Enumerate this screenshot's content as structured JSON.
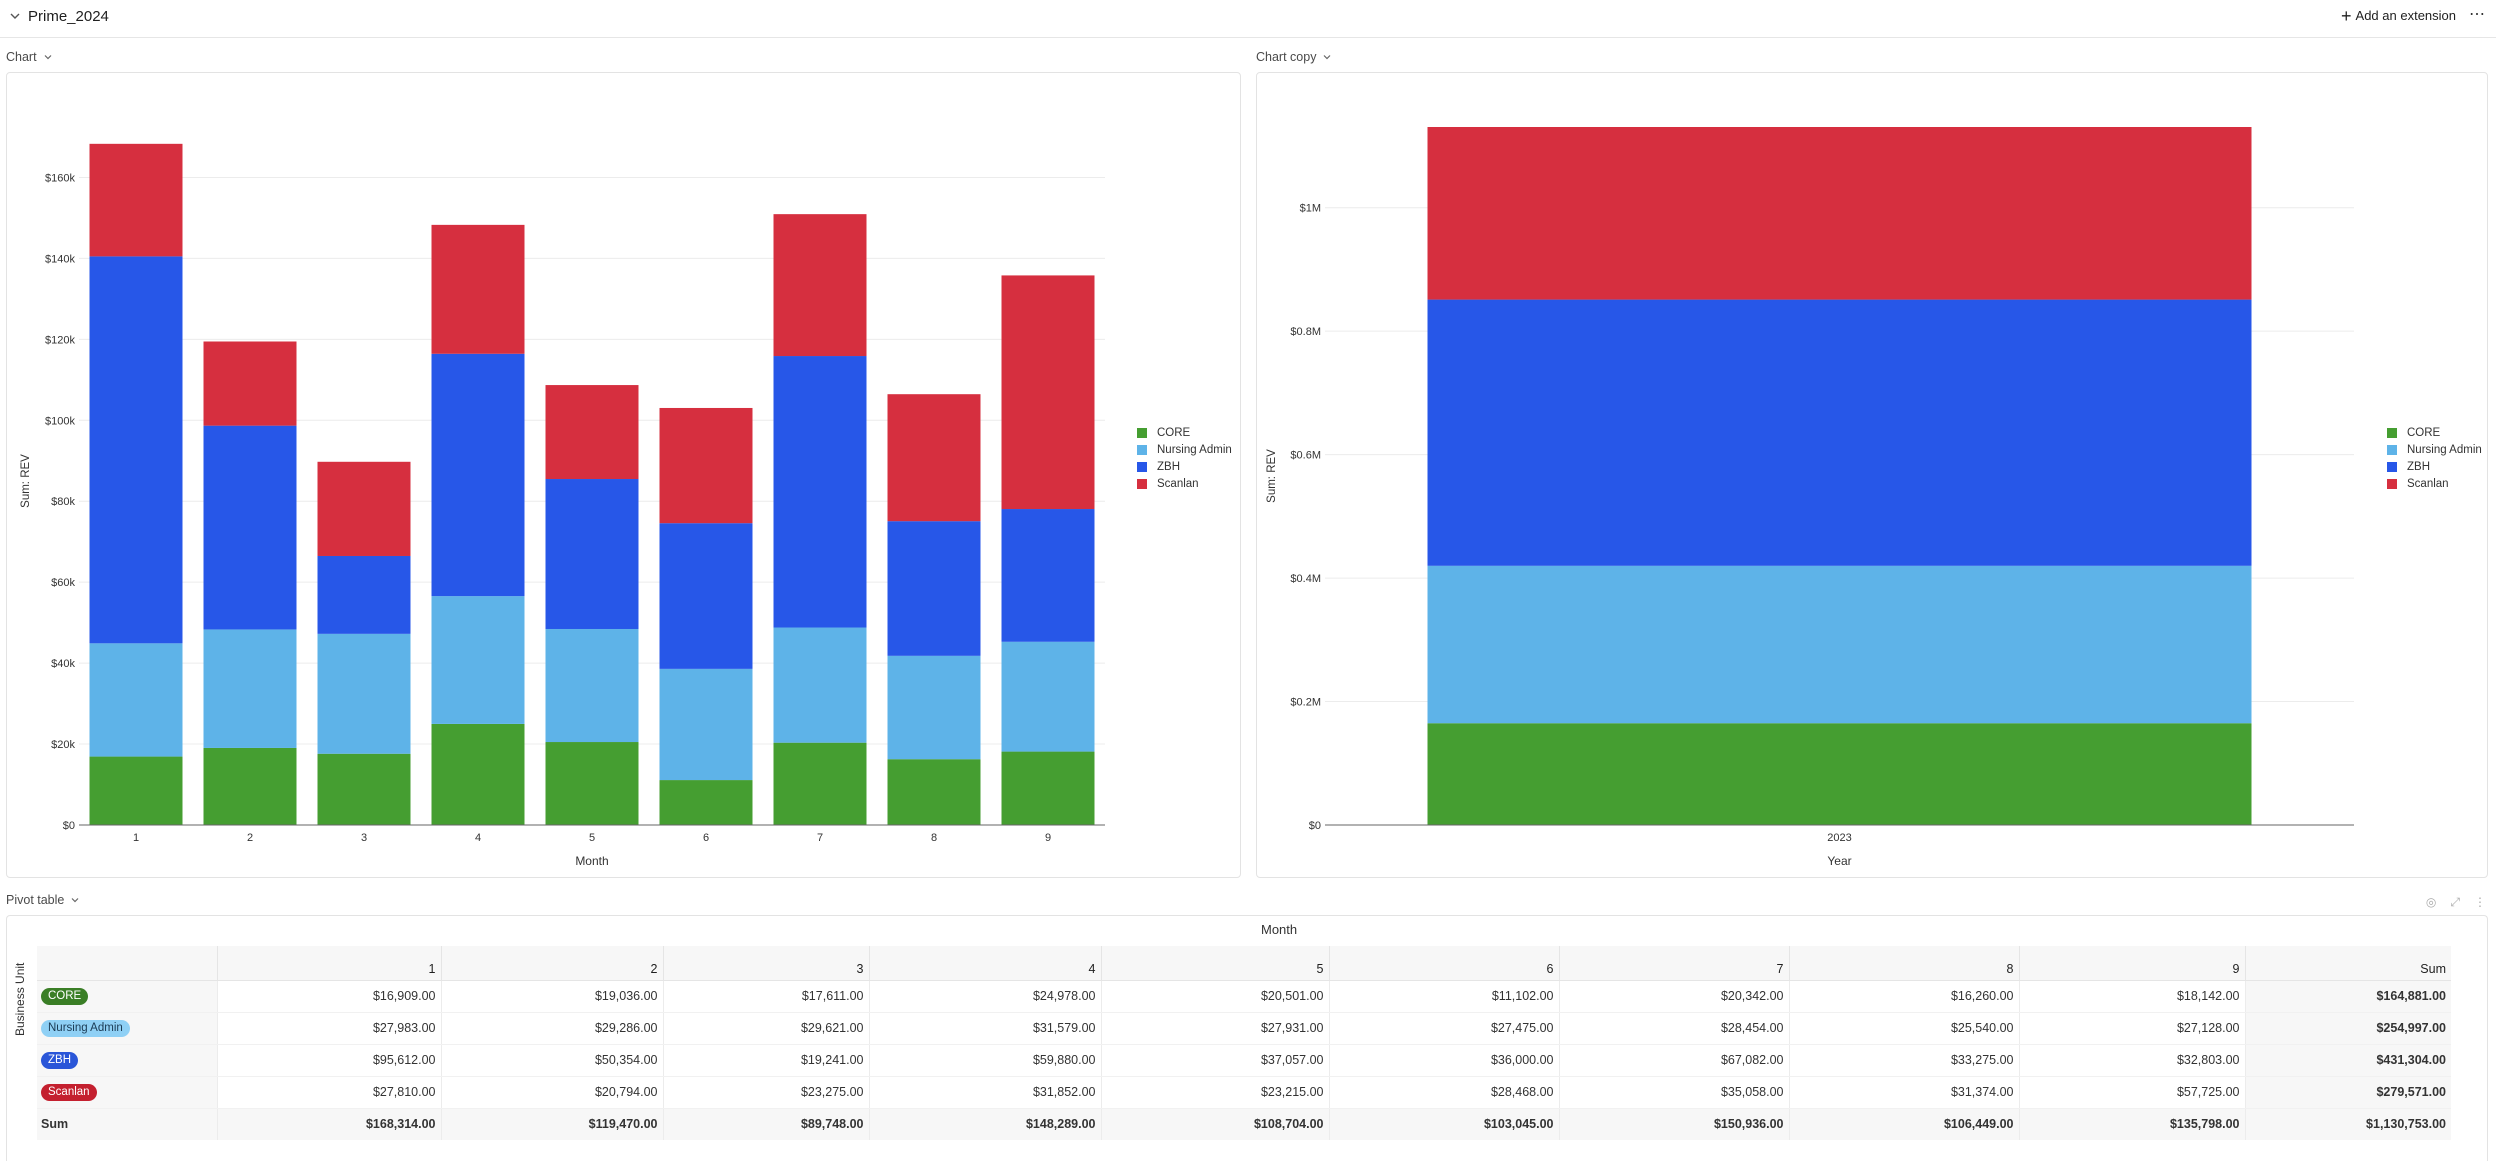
{
  "page": {
    "title": "Prime_2024",
    "add_extension": "Add an extension",
    "more": "⋯"
  },
  "colors": {
    "CORE": "#459e31",
    "Nursing Admin": "#5eb3e8",
    "ZBH": "#2757e8",
    "Scanlan": "#d62f3f"
  },
  "panels": {
    "chart1_label": "Chart",
    "chart2_label": "Chart copy",
    "pivot_label": "Pivot table"
  },
  "chart_data": [
    {
      "type": "bar",
      "stacked": true,
      "categories": [
        "1",
        "2",
        "3",
        "4",
        "5",
        "6",
        "7",
        "8",
        "9"
      ],
      "series": [
        {
          "name": "CORE",
          "values": [
            16909,
            19036,
            17611,
            24978,
            20501,
            11102,
            20342,
            16260,
            18142
          ]
        },
        {
          "name": "Nursing Admin",
          "values": [
            27983,
            29286,
            29621,
            31579,
            27931,
            27475,
            28454,
            25540,
            27128
          ]
        },
        {
          "name": "ZBH",
          "values": [
            95612,
            50354,
            19241,
            59880,
            37057,
            36000,
            67082,
            33275,
            32803
          ]
        },
        {
          "name": "Scanlan",
          "values": [
            27810,
            20794,
            23275,
            31852,
            23215,
            28468,
            35058,
            31374,
            57725
          ]
        }
      ],
      "xlabel": "Month",
      "ylabel": "Sum: REV",
      "ylim": [
        0,
        170000
      ],
      "yticks": [
        "$0",
        "$20k",
        "$40k",
        "$60k",
        "$80k",
        "$100k",
        "$120k",
        "$140k",
        "$160k"
      ],
      "ytick_values": [
        0,
        20000,
        40000,
        60000,
        80000,
        100000,
        120000,
        140000,
        160000
      ],
      "grid": true,
      "legend": "right"
    },
    {
      "type": "bar",
      "stacked": true,
      "categories": [
        "2023"
      ],
      "series": [
        {
          "name": "CORE",
          "values": [
            164881
          ]
        },
        {
          "name": "Nursing Admin",
          "values": [
            254997
          ]
        },
        {
          "name": "ZBH",
          "values": [
            431304
          ]
        },
        {
          "name": "Scanlan",
          "values": [
            279571
          ]
        }
      ],
      "xlabel": "Year",
      "ylabel": "Sum: REV",
      "ylim": [
        0,
        1130753
      ],
      "yticks": [
        "$0",
        "$0.2M",
        "$0.4M",
        "$0.6M",
        "$0.8M",
        "$1M"
      ],
      "ytick_values": [
        0,
        200000,
        400000,
        600000,
        800000,
        1000000
      ],
      "grid": true,
      "legend": "right"
    }
  ],
  "pivot": {
    "col_header": "Month",
    "row_header": "Business Unit",
    "columns": [
      "1",
      "2",
      "3",
      "4",
      "5",
      "6",
      "7",
      "8",
      "9",
      "Sum"
    ],
    "rows": [
      {
        "label": "CORE",
        "values": [
          "$16,909.00",
          "$19,036.00",
          "$17,611.00",
          "$24,978.00",
          "$20,501.00",
          "$11,102.00",
          "$20,342.00",
          "$16,260.00",
          "$18,142.00",
          "$164,881.00"
        ]
      },
      {
        "label": "Nursing Admin",
        "values": [
          "$27,983.00",
          "$29,286.00",
          "$29,621.00",
          "$31,579.00",
          "$27,931.00",
          "$27,475.00",
          "$28,454.00",
          "$25,540.00",
          "$27,128.00",
          "$254,997.00"
        ]
      },
      {
        "label": "ZBH",
        "values": [
          "$95,612.00",
          "$50,354.00",
          "$19,241.00",
          "$59,880.00",
          "$37,057.00",
          "$36,000.00",
          "$67,082.00",
          "$33,275.00",
          "$32,803.00",
          "$431,304.00"
        ]
      },
      {
        "label": "Scanlan",
        "values": [
          "$27,810.00",
          "$20,794.00",
          "$23,275.00",
          "$31,852.00",
          "$23,215.00",
          "$28,468.00",
          "$35,058.00",
          "$31,374.00",
          "$57,725.00",
          "$279,571.00"
        ]
      }
    ],
    "sum_row": {
      "label": "Sum",
      "values": [
        "$168,314.00",
        "$119,470.00",
        "$89,748.00",
        "$148,289.00",
        "$108,704.00",
        "$103,045.00",
        "$150,936.00",
        "$106,449.00",
        "$135,798.00",
        "$1,130,753.00"
      ]
    }
  }
}
